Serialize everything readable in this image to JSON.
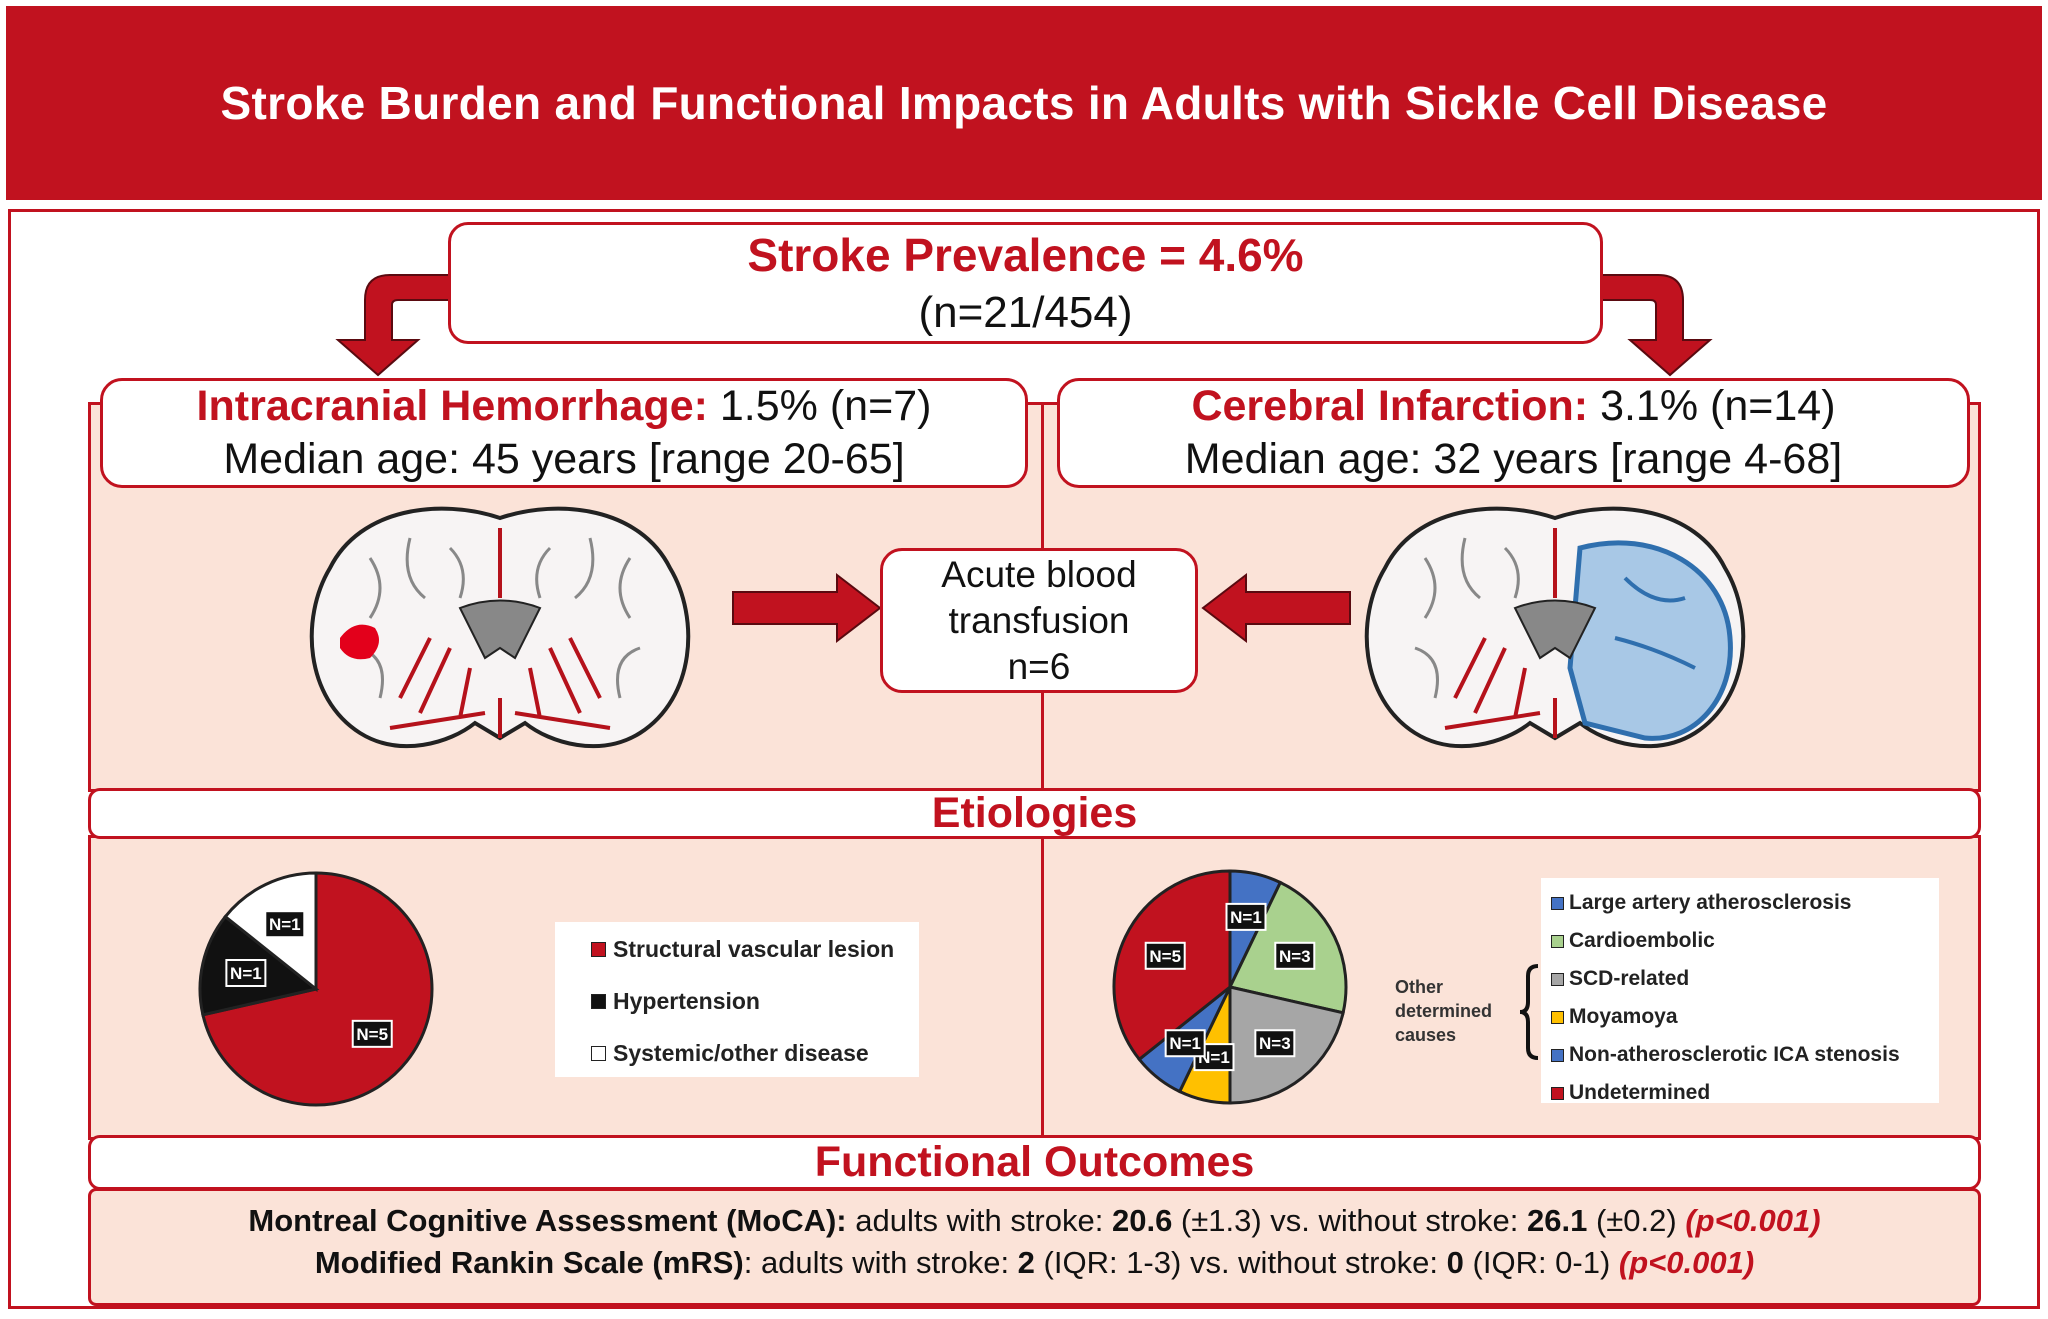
{
  "title": "Stroke Burden and Functional Impacts in Adults with Sickle Cell Disease",
  "prevalence": {
    "heading": "Stroke Prevalence = 4.6%",
    "count": "(n=21/454)"
  },
  "ich": {
    "label": "Intracranial Hemorrhage:",
    "value": "1.5% (n=7)",
    "age_label": "Median age:",
    "age_value": "45 years [range 20-65]"
  },
  "ci": {
    "label": "Cerebral Infarction:",
    "value": "3.1% (n=14)",
    "age_label": "Median age:",
    "age_value": "32 years [range 4-68]"
  },
  "transfusion": {
    "line1": "Acute blood",
    "line2": "transfusion",
    "line3": "n=6"
  },
  "etiologies_title": "Etiologies",
  "colors": {
    "red": "#c1121f",
    "black": "#111111",
    "white": "#ffffff",
    "blue": "#4472c4",
    "green": "#a9d18e",
    "gray": "#a6a6a6",
    "yellow": "#ffc000"
  },
  "chart_data": [
    {
      "type": "pie",
      "slices": [
        {
          "label": "Structural vascular lesion",
          "value": 5,
          "display": "N=5",
          "color": "#c1121f"
        },
        {
          "label": "Hypertension",
          "value": 1,
          "display": "N=1",
          "color": "#111111"
        },
        {
          "label": "Systemic/other disease",
          "value": 1,
          "display": "N=1",
          "color": "#ffffff"
        }
      ],
      "legend": [
        "Structural vascular lesion",
        "Hypertension",
        "Systemic/other disease"
      ],
      "legend_position": "right"
    },
    {
      "type": "pie",
      "slices": [
        {
          "label": "Large artery atherosclerosis",
          "value": 1,
          "display": "N=1",
          "color": "#4472c4"
        },
        {
          "label": "Cardioembolic",
          "value": 3,
          "display": "N=3",
          "color": "#a9d18e"
        },
        {
          "label": "SCD-related",
          "value": 3,
          "display": "N=3",
          "color": "#a6a6a6"
        },
        {
          "label": "Moyamoya",
          "value": 1,
          "display": "N=1",
          "color": "#ffc000"
        },
        {
          "label": "Non-atherosclerotic ICA stenosis",
          "value": 1,
          "display": "N=1",
          "color": "#4472c4"
        },
        {
          "label": "Undetermined",
          "value": 5,
          "display": "N=5",
          "color": "#c1121f"
        }
      ],
      "legend": [
        "Large artery atherosclerosis",
        "Cardioembolic",
        "SCD-related",
        "Moyamoya",
        "Non-atherosclerotic ICA stenosis",
        "Undetermined"
      ],
      "legend_position": "right",
      "bracket_label": [
        "Other",
        "determined",
        "causes"
      ]
    }
  ],
  "outcomes": {
    "title": "Functional Outcomes",
    "moca": {
      "name": "Montreal Cognitive Assessment (MoCA):",
      "text1": " adults with stroke: ",
      "stroke_value": "20.6",
      "stroke_sd": " (±1.3)",
      "text2": " vs. without stroke: ",
      "nostroke_value": "26.1",
      "nostroke_sd": " (±0.2) ",
      "p": "(p<0.001)"
    },
    "mrs": {
      "name": "Modified Rankin Scale (mRS)",
      "text1": ": adults with stroke: ",
      "stroke_value": "2",
      "stroke_iqr": " (IQR: 1-3)",
      "text2": " vs. without stroke: ",
      "nostroke_value": "0",
      "nostroke_iqr": " (IQR: 0-1) ",
      "p": "(p<0.001)"
    }
  }
}
